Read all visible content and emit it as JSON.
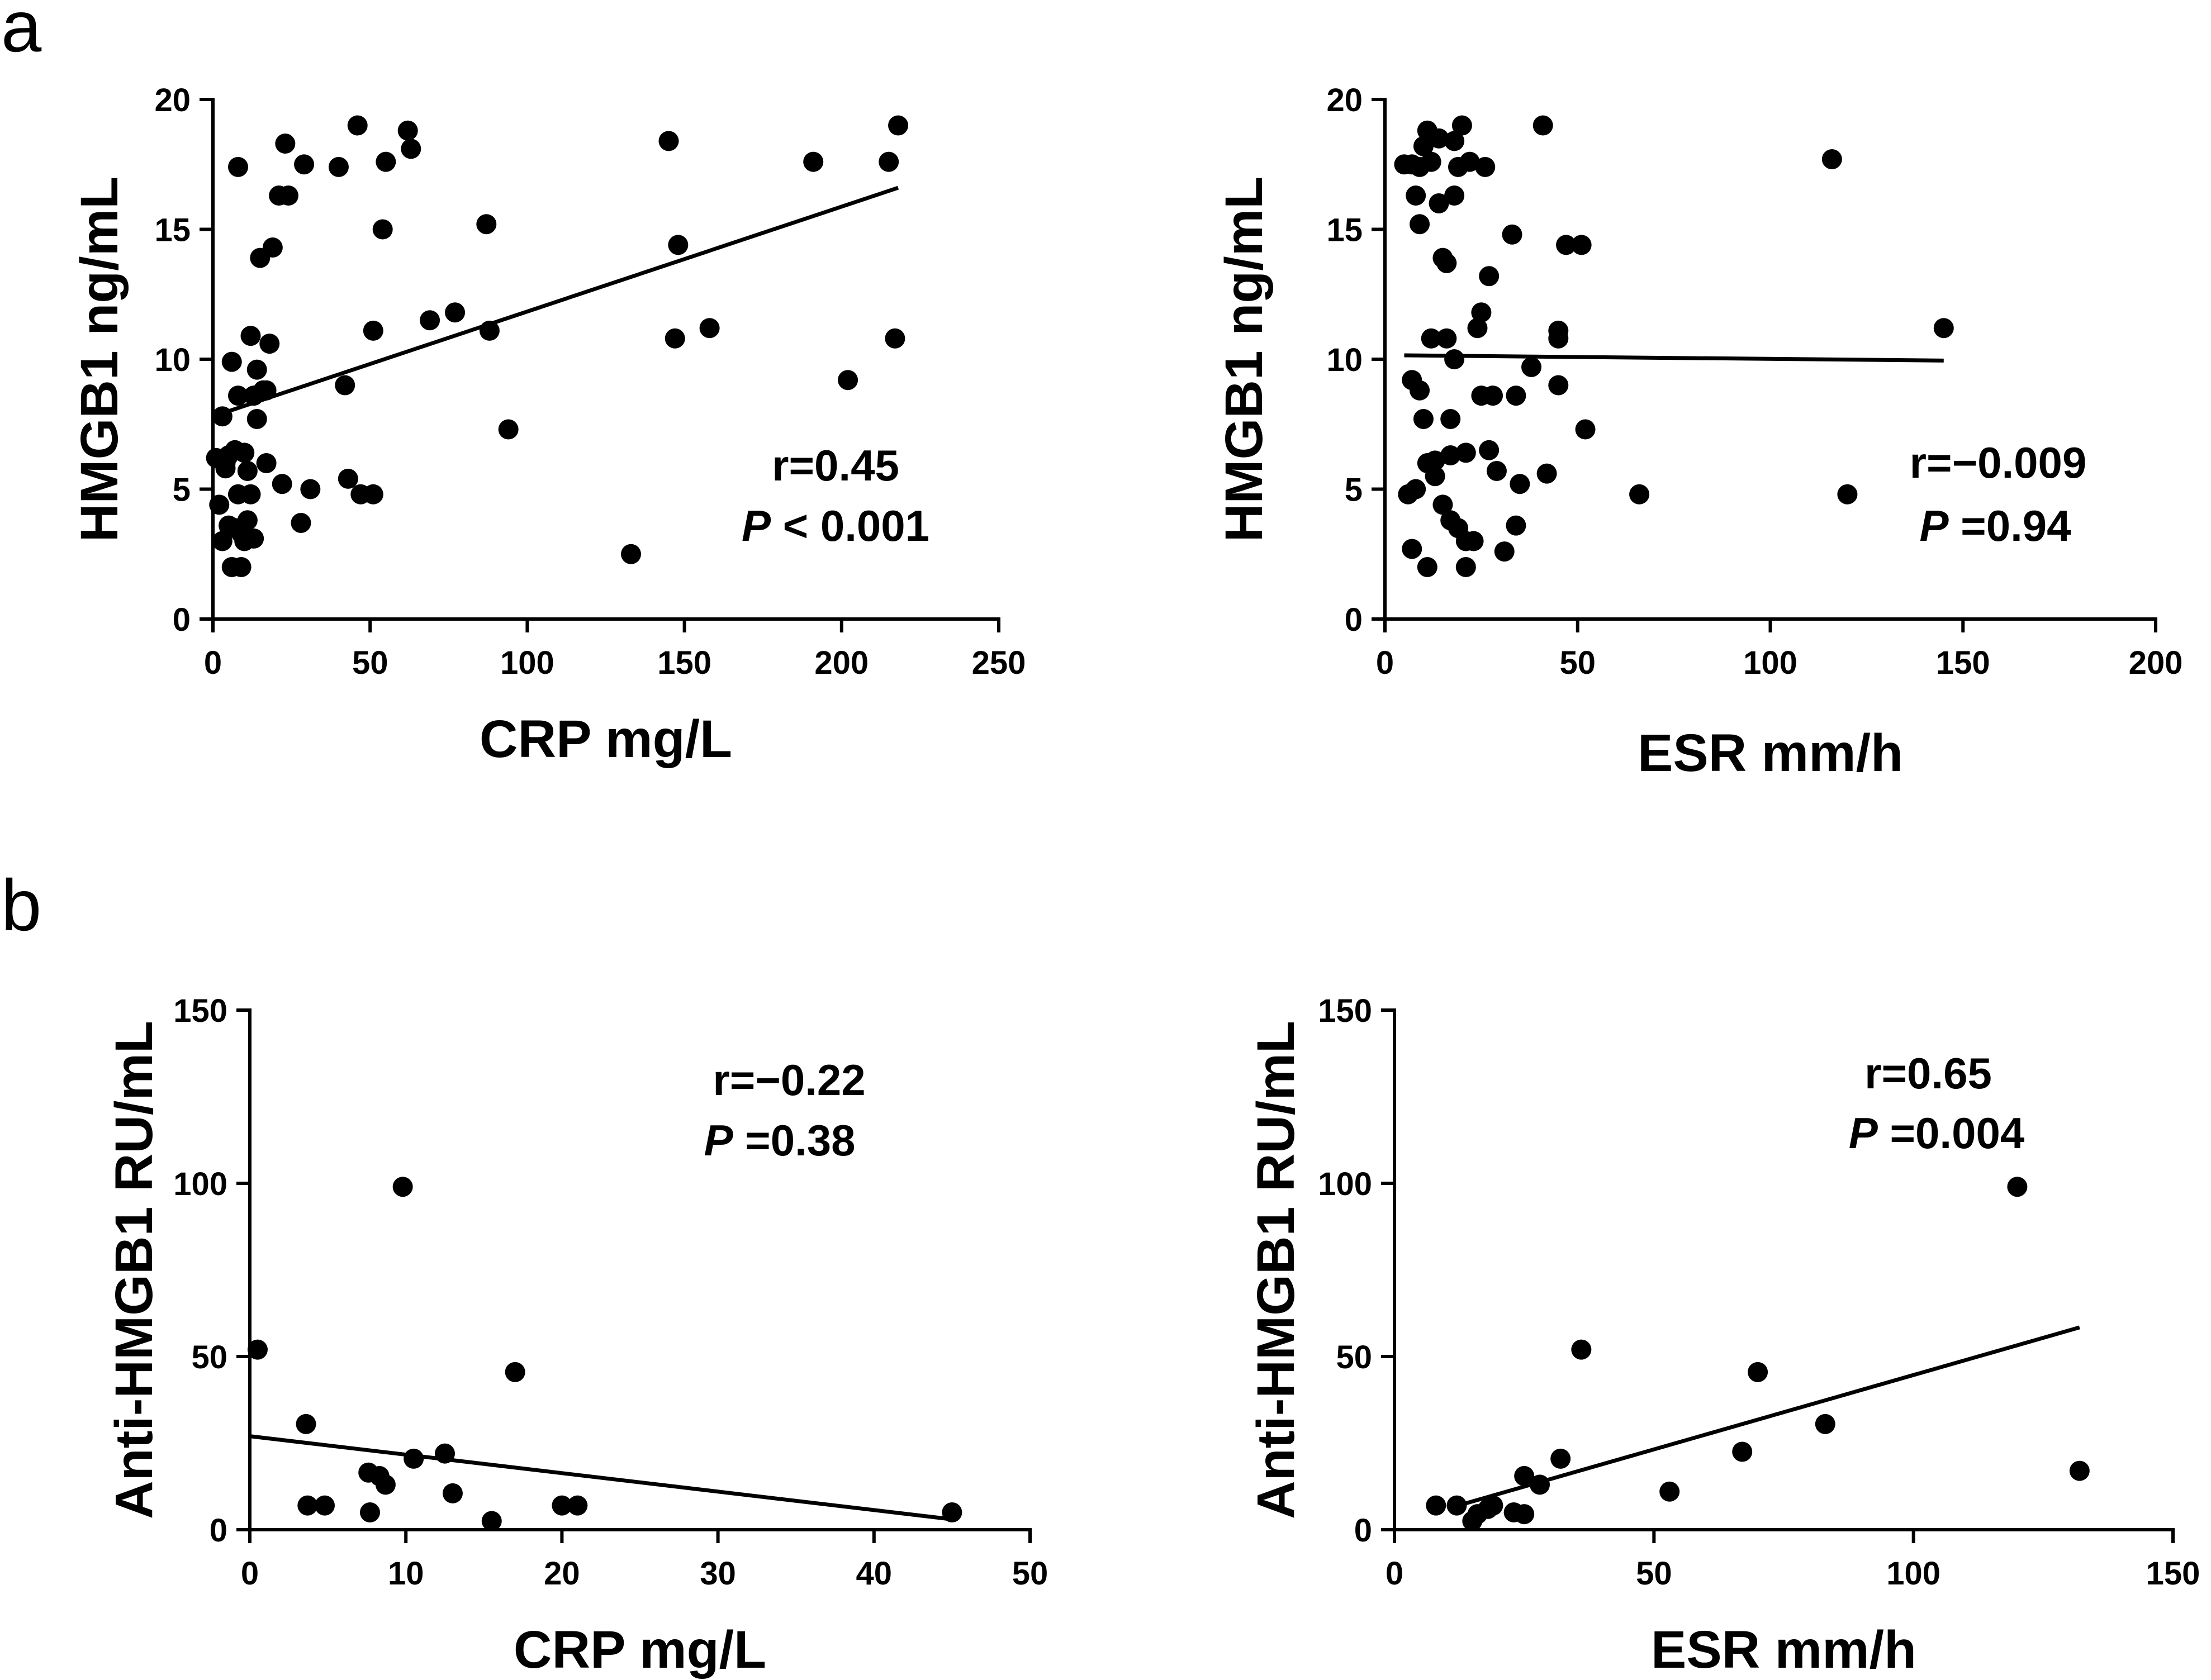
{
  "panel_labels": [
    "a",
    "b"
  ],
  "chart_data": [
    {
      "type": "scatter",
      "panel": "a",
      "xlabel": "CRP mg/L",
      "ylabel": "HMGB1 ng/mL",
      "xlim": [
        0,
        250
      ],
      "ylim": [
        0,
        20
      ],
      "xticks": [
        0,
        50,
        100,
        150,
        200,
        250
      ],
      "yticks": [
        0,
        5,
        10,
        15,
        20
      ],
      "stat_r": "r=0.45",
      "stat_p_label": "P",
      "stat_p_rest": " < 0.001",
      "regression": {
        "x1": 0,
        "y1": 7.8,
        "x2": 218,
        "y2": 16.6
      },
      "points": [
        [
          1,
          6.2
        ],
        [
          2,
          4.4
        ],
        [
          3,
          3.0
        ],
        [
          3,
          7.8
        ],
        [
          4,
          6.0
        ],
        [
          4,
          5.8
        ],
        [
          5,
          3.6
        ],
        [
          5,
          6.3
        ],
        [
          6,
          9.9
        ],
        [
          6,
          2.0
        ],
        [
          7,
          3.5
        ],
        [
          7,
          6.5
        ],
        [
          8,
          8.6
        ],
        [
          8,
          4.8
        ],
        [
          8,
          17.4
        ],
        [
          9,
          2.0
        ],
        [
          9,
          3.3
        ],
        [
          10,
          3.0
        ],
        [
          10,
          6.4
        ],
        [
          11,
          5.7
        ],
        [
          11,
          3.8
        ],
        [
          12,
          4.8
        ],
        [
          12,
          10.9
        ],
        [
          13,
          8.6
        ],
        [
          13,
          3.1
        ],
        [
          14,
          7.7
        ],
        [
          14,
          9.6
        ],
        [
          15,
          13.9
        ],
        [
          16,
          8.8
        ],
        [
          17,
          6.0
        ],
        [
          17,
          8.8
        ],
        [
          18,
          10.6
        ],
        [
          19,
          14.3
        ],
        [
          21,
          16.3
        ],
        [
          22,
          5.2
        ],
        [
          23,
          18.3
        ],
        [
          24,
          16.3
        ],
        [
          28,
          3.7
        ],
        [
          29,
          17.5
        ],
        [
          31,
          5.0
        ],
        [
          40,
          17.4
        ],
        [
          42,
          9.0
        ],
        [
          43,
          5.4
        ],
        [
          46,
          19.0
        ],
        [
          47,
          4.8
        ],
        [
          51,
          4.8
        ],
        [
          51,
          11.1
        ],
        [
          54,
          15.0
        ],
        [
          55,
          17.6
        ],
        [
          62,
          18.8
        ],
        [
          63,
          18.1
        ],
        [
          69,
          11.5
        ],
        [
          77,
          11.8
        ],
        [
          87,
          15.2
        ],
        [
          88,
          11.1
        ],
        [
          94,
          7.3
        ],
        [
          133,
          2.5
        ],
        [
          145,
          18.4
        ],
        [
          147,
          10.8
        ],
        [
          148,
          14.4
        ],
        [
          158,
          11.2
        ],
        [
          191,
          17.6
        ],
        [
          202,
          9.2
        ],
        [
          215,
          17.6
        ],
        [
          217,
          10.8
        ],
        [
          218,
          19.0
        ]
      ]
    },
    {
      "type": "scatter",
      "panel": "a",
      "xlabel": "ESR mm/h",
      "ylabel": "HMGB1 ng/mL",
      "xlim": [
        0,
        200
      ],
      "ylim": [
        0,
        20
      ],
      "xticks": [
        0,
        50,
        100,
        150,
        200
      ],
      "yticks": [
        0,
        5,
        10,
        15,
        20
      ],
      "stat_r": "r=−0.009",
      "stat_p_label": "P",
      "stat_p_rest": " =0.94",
      "regression": {
        "x1": 5,
        "y1": 10.15,
        "x2": 145,
        "y2": 9.95
      },
      "points": [
        [
          5,
          17.5
        ],
        [
          6,
          4.8
        ],
        [
          7,
          17.5
        ],
        [
          7,
          9.2
        ],
        [
          7,
          2.7
        ],
        [
          8,
          16.3
        ],
        [
          8,
          5.0
        ],
        [
          9,
          15.2
        ],
        [
          9,
          8.8
        ],
        [
          9,
          17.4
        ],
        [
          10,
          18.2
        ],
        [
          10,
          7.7
        ],
        [
          11,
          2.0
        ],
        [
          11,
          18.8
        ],
        [
          11,
          6.0
        ],
        [
          12,
          17.6
        ],
        [
          12,
          10.8
        ],
        [
          13,
          5.5
        ],
        [
          13,
          6.1
        ],
        [
          14,
          18.5
        ],
        [
          14,
          16.0
        ],
        [
          15,
          4.4
        ],
        [
          15,
          13.9
        ],
        [
          16,
          13.7
        ],
        [
          16,
          10.8
        ],
        [
          17,
          6.3
        ],
        [
          17,
          3.8
        ],
        [
          17,
          7.7
        ],
        [
          18,
          16.3
        ],
        [
          18,
          10.0
        ],
        [
          18,
          18.4
        ],
        [
          19,
          17.4
        ],
        [
          19,
          3.5
        ],
        [
          20,
          19.0
        ],
        [
          21,
          6.4
        ],
        [
          21,
          3.0
        ],
        [
          21,
          2.0
        ],
        [
          22,
          17.6
        ],
        [
          23,
          3.0
        ],
        [
          24,
          11.2
        ],
        [
          25,
          11.8
        ],
        [
          25,
          8.6
        ],
        [
          26,
          17.4
        ],
        [
          27,
          13.2
        ],
        [
          27,
          6.5
        ],
        [
          28,
          8.6
        ],
        [
          29,
          5.7
        ],
        [
          31,
          2.6
        ],
        [
          33,
          14.8
        ],
        [
          34,
          8.6
        ],
        [
          34,
          3.6
        ],
        [
          35,
          5.2
        ],
        [
          38,
          9.7
        ],
        [
          41,
          19.0
        ],
        [
          42,
          5.6
        ],
        [
          45,
          9.0
        ],
        [
          45,
          10.8
        ],
        [
          45,
          11.1
        ],
        [
          47,
          14.4
        ],
        [
          51,
          14.4
        ],
        [
          52,
          7.3
        ],
        [
          66,
          4.8
        ],
        [
          116,
          17.7
        ],
        [
          120,
          4.8
        ],
        [
          145,
          11.2
        ]
      ]
    },
    {
      "type": "scatter",
      "panel": "b",
      "xlabel": "CRP mg/L",
      "ylabel": "Anti-HMGB1 RU/mL",
      "xlim": [
        0,
        50
      ],
      "ylim": [
        0,
        150
      ],
      "xticks": [
        0,
        10,
        20,
        30,
        40,
        50
      ],
      "yticks": [
        0,
        50,
        100,
        150
      ],
      "stat_r": "r=−0.22",
      "stat_p_label": "P",
      "stat_p_rest": " =0.38",
      "regression": {
        "x1": 0,
        "y1": 27,
        "x2": 45,
        "y2": 3
      },
      "points": [
        [
          0.5,
          52
        ],
        [
          3.6,
          30.5
        ],
        [
          3.7,
          7
        ],
        [
          4.8,
          7
        ],
        [
          7.6,
          16.5
        ],
        [
          7.7,
          5
        ],
        [
          8.3,
          15.5
        ],
        [
          8.7,
          13
        ],
        [
          9.8,
          99
        ],
        [
          10.5,
          20.5
        ],
        [
          12.5,
          22
        ],
        [
          13,
          10.5
        ],
        [
          15.5,
          2.5
        ],
        [
          17,
          45.5
        ],
        [
          20,
          7
        ],
        [
          21,
          7
        ],
        [
          45,
          5
        ]
      ]
    },
    {
      "type": "scatter",
      "panel": "b",
      "xlabel": "ESR mm/h",
      "ylabel": "Anti-HMGB1 RU/mL",
      "xlim": [
        0,
        150
      ],
      "ylim": [
        0,
        150
      ],
      "xticks": [
        0,
        50,
        100,
        150
      ],
      "yticks": [
        0,
        50,
        100,
        150
      ],
      "stat_r": "r=0.65",
      "stat_p_label": "P",
      "stat_p_rest": " =0.004",
      "regression": {
        "x1": 13,
        "y1": 7.3,
        "x2": 132,
        "y2": 58.4
      },
      "points": [
        [
          8,
          7
        ],
        [
          12,
          7
        ],
        [
          15,
          2.5
        ],
        [
          16,
          4.5
        ],
        [
          18,
          6
        ],
        [
          19,
          7
        ],
        [
          23,
          5
        ],
        [
          25,
          4.5
        ],
        [
          25,
          15.5
        ],
        [
          28,
          13
        ],
        [
          32,
          20.5
        ],
        [
          36,
          52
        ],
        [
          53,
          11
        ],
        [
          67,
          22.5
        ],
        [
          70,
          45.5
        ],
        [
          83,
          30.5
        ],
        [
          120,
          99
        ],
        [
          132,
          17
        ]
      ]
    }
  ]
}
